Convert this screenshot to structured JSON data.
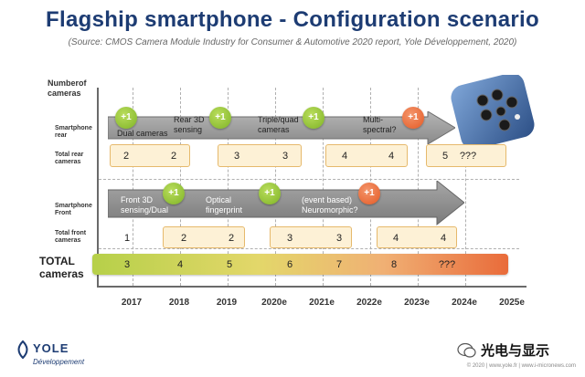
{
  "title": "Flagship smartphone - Configuration scenario",
  "subtitle": "(Source: CMOS Camera Module Industry for Consumer & Automotive 2020 report, Yole Développement, 2020)",
  "axis": {
    "y_label": "Numberof cameras",
    "years": [
      "2017",
      "2018",
      "2019",
      "2020e",
      "2021e",
      "2022e",
      "2023e",
      "2024e",
      "2025e"
    ]
  },
  "rows": {
    "rear_label": "Smartphone rear",
    "total_rear_label": "Total rear cameras",
    "front_label": "Smartphone Front",
    "total_front_label": "Total front cameras",
    "total_label": "TOTAL cameras"
  },
  "rear_steps": {
    "plus_label": "+1",
    "notes": [
      "Dual cameras",
      "Rear 3D sensing",
      "Triple/quad cameras",
      "Multi-spectral?"
    ]
  },
  "front_steps": {
    "plus_label": "+1",
    "notes": [
      "Front 3D sensing/Dual",
      "Optical fingerprint",
      "(event based) Neuromorphic?"
    ]
  },
  "rear_counts": [
    "2",
    "2",
    "3",
    "3",
    "4",
    "4",
    "5",
    "???"
  ],
  "front_counts": [
    "1",
    "2",
    "2",
    "3",
    "3",
    "4",
    "4"
  ],
  "total_counts": [
    "3",
    "4",
    "5",
    "6",
    "7",
    "8",
    "???"
  ],
  "footer": {
    "logo": "YOLE",
    "logo_sub": "Développement",
    "copyright": "© 2020 | www.yole.fr | www.i-micronews.com",
    "watermark": "光电与显示"
  },
  "colors": {
    "title": "#1d3c73",
    "plus_green": "#8cc032",
    "plus_orange": "#e4602a",
    "box_fill": "#fdf1d6",
    "box_border": "#e6b96c"
  }
}
